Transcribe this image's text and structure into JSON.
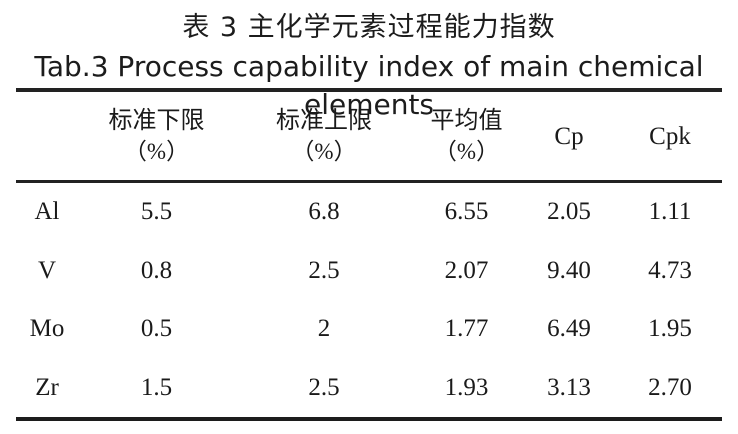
{
  "page": {
    "title_cn": "表 3 主化学元素过程能力指数",
    "title_en": "Tab.3 Process capability index of main chemical elements"
  },
  "table": {
    "columns": [
      {
        "line1": "",
        "line2": ""
      },
      {
        "line1": "标准下限",
        "line2": "（%）"
      },
      {
        "line1": "标准上限",
        "line2": "（%）"
      },
      {
        "line1": "平均值",
        "line2": "（%）"
      },
      {
        "line1": "Cp",
        "line2": ""
      },
      {
        "line1": "Cpk",
        "line2": ""
      }
    ],
    "rows": [
      {
        "element": "Al",
        "lower": "5.5",
        "upper": "6.8",
        "mean": "6.55",
        "cp": "2.05",
        "cpk": "1.11"
      },
      {
        "element": "V",
        "lower": "0.8",
        "upper": "2.5",
        "mean": "2.07",
        "cp": "9.40",
        "cpk": "4.73"
      },
      {
        "element": "Mo",
        "lower": "0.5",
        "upper": "2",
        "mean": "1.77",
        "cp": "6.49",
        "cpk": "1.95"
      },
      {
        "element": "Zr",
        "lower": "1.5",
        "upper": "2.5",
        "mean": "1.93",
        "cp": "3.13",
        "cpk": "2.70"
      }
    ]
  },
  "chart_data": {
    "type": "table",
    "title": "表 3 主化学元素过程能力指数 / Tab.3 Process capability index of main chemical elements",
    "columns": [
      "",
      "标准下限（%）",
      "标准上限（%）",
      "平均值（%）",
      "Cp",
      "Cpk"
    ],
    "rows": [
      [
        "Al",
        5.5,
        6.8,
        6.55,
        2.05,
        1.11
      ],
      [
        "V",
        0.8,
        2.5,
        2.07,
        9.4,
        4.73
      ],
      [
        "Mo",
        0.5,
        2,
        1.77,
        6.49,
        1.95
      ],
      [
        "Zr",
        1.5,
        2.5,
        1.93,
        3.13,
        2.7
      ]
    ]
  }
}
